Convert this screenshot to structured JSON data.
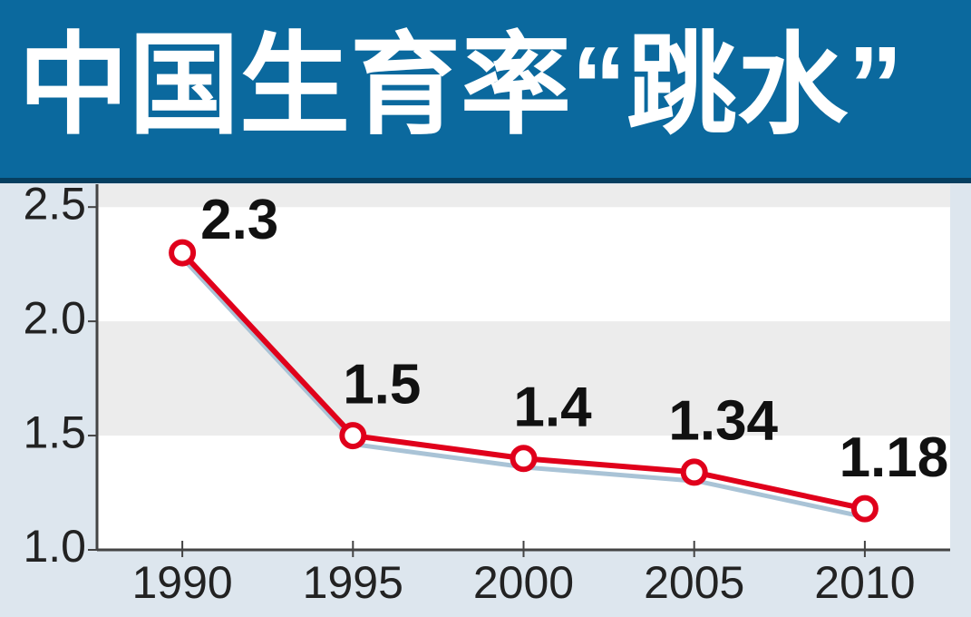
{
  "chart_data": {
    "type": "line",
    "title": "中国生育率“跳水”",
    "x": [
      1990,
      1995,
      2000,
      2005,
      2010
    ],
    "series": [
      {
        "color": "#e0001b",
        "values": [
          2.3,
          1.5,
          1.4,
          1.34,
          1.18
        ]
      }
    ],
    "xlim": [
      1987.5,
      2012.5
    ],
    "xticks": [
      1990,
      1995,
      2000,
      2005,
      2010
    ],
    "ylim": [
      1.0,
      2.6
    ],
    "yticks": [
      {
        "value": 1,
        "label": "1.0"
      },
      1.5,
      {
        "value": 2,
        "label": "2.0"
      },
      2.5
    ],
    "grid": true
  }
}
